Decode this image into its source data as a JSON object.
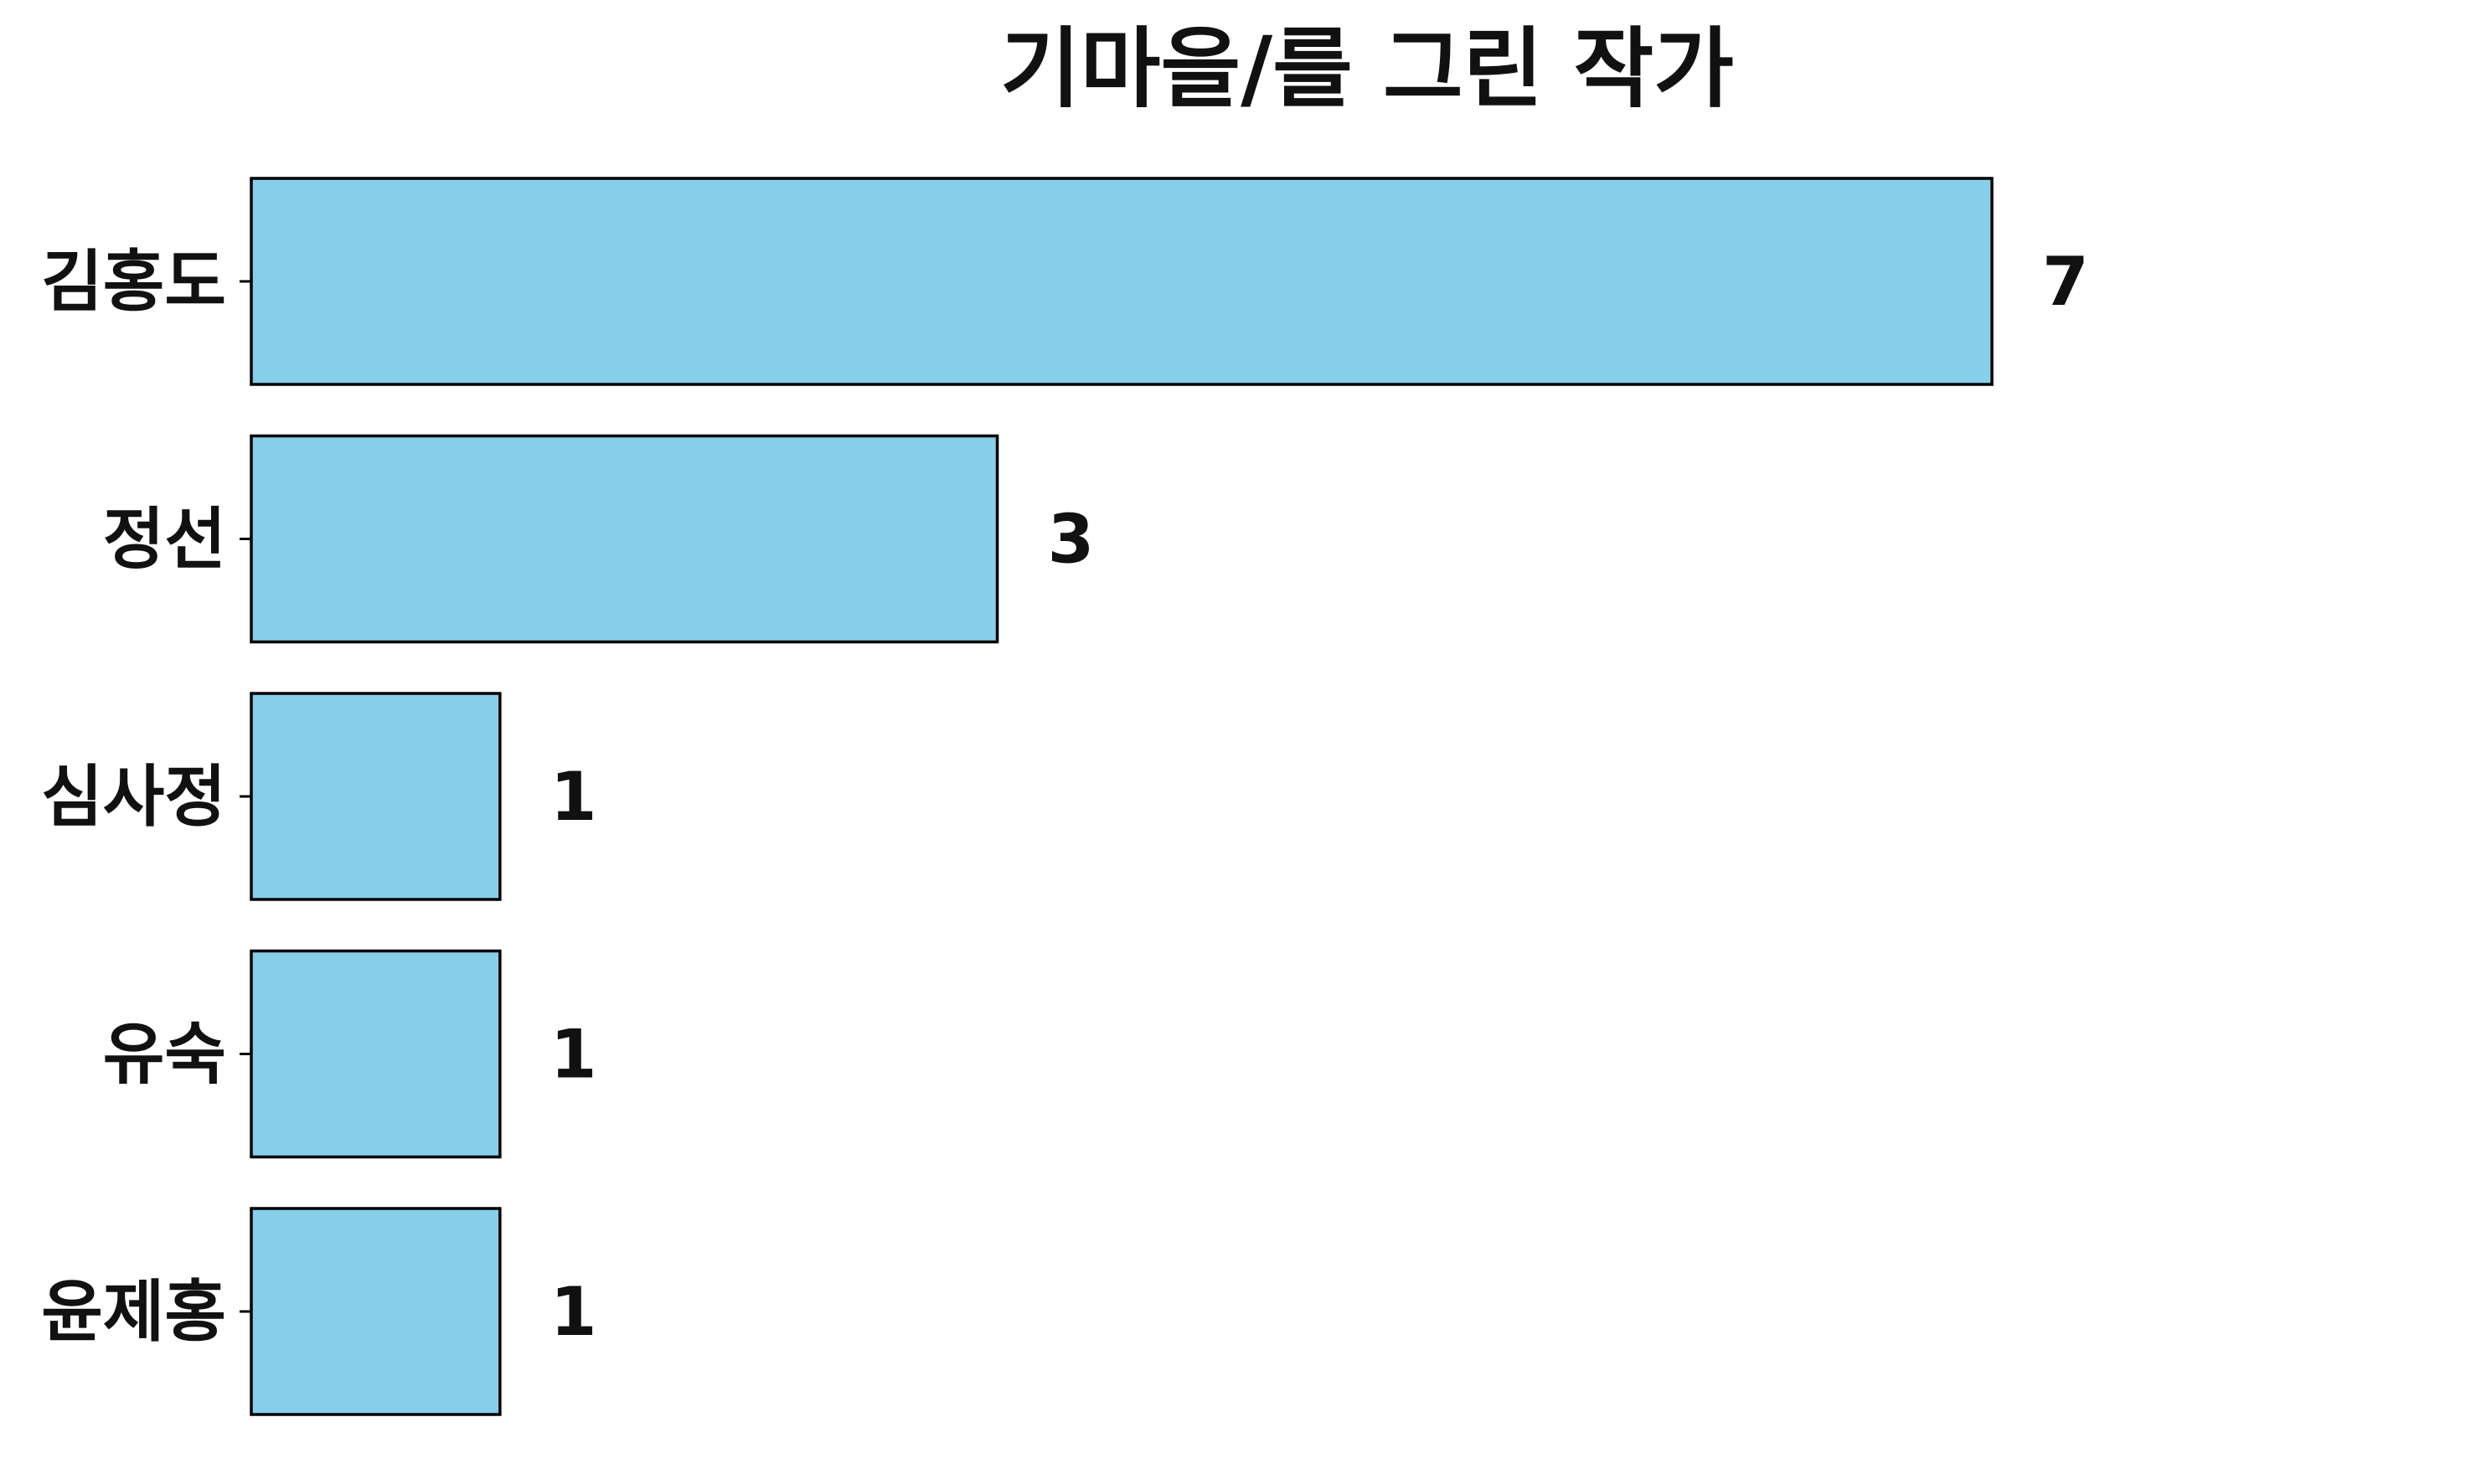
{
  "chart_data": {
    "type": "bar",
    "orientation": "horizontal",
    "title": "기마을/를 그린 작가",
    "categories": [
      "김홍도",
      "정선",
      "심사정",
      "유숙",
      "윤제홍"
    ],
    "values": [
      7,
      3,
      1,
      1,
      1
    ],
    "xlabel": "",
    "ylabel": "",
    "xlim": [
      0,
      7
    ],
    "grid": false,
    "legend": "none",
    "show_value_labels": true,
    "bar_color": "#87CEEB",
    "bar_edge_color": "#000000",
    "text_color": "#111111"
  }
}
